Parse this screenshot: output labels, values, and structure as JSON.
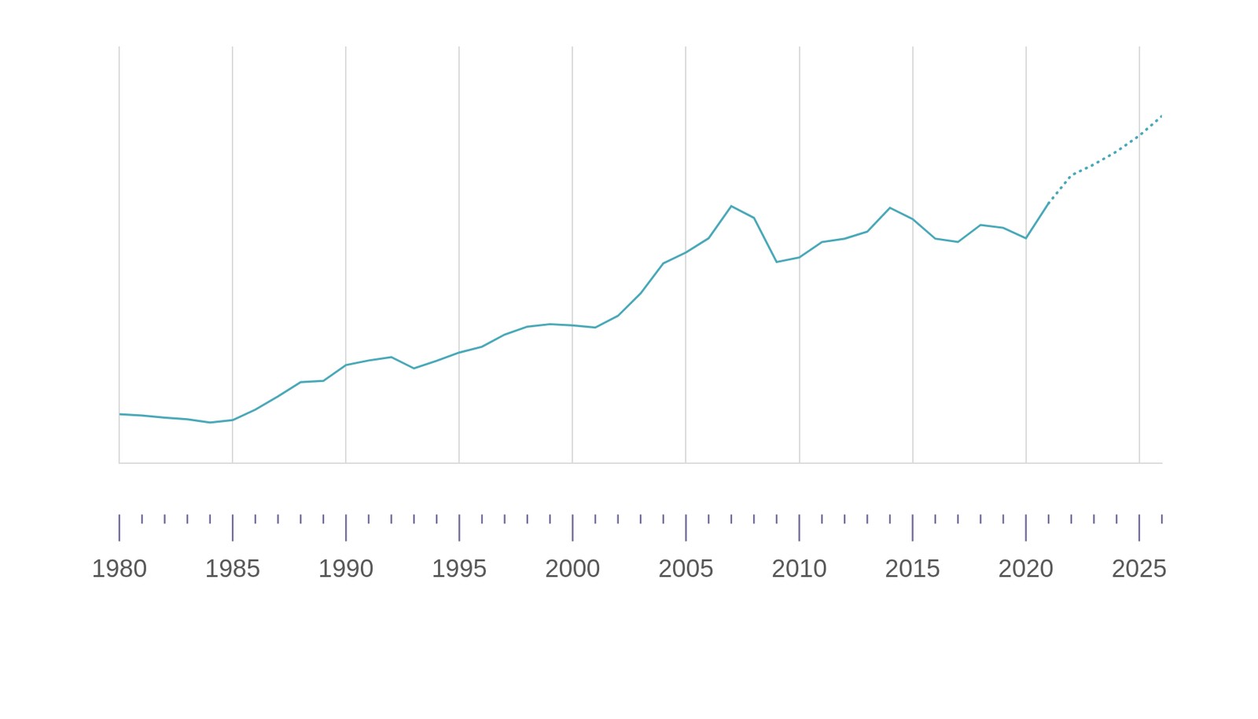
{
  "chart_data": {
    "type": "line",
    "x": [
      1980,
      1981,
      1982,
      1983,
      1984,
      1985,
      1986,
      1987,
      1988,
      1989,
      1990,
      1991,
      1992,
      1993,
      1994,
      1995,
      1996,
      1997,
      1998,
      1999,
      2000,
      2001,
      2002,
      2003,
      2004,
      2005,
      2006,
      2007,
      2008,
      2009,
      2010,
      2011,
      2012,
      2013,
      2014,
      2015,
      2016,
      2017,
      2018,
      2019,
      2020,
      2021,
      2022,
      2023,
      2024,
      2025,
      2026
    ],
    "series": [
      {
        "color": "#4aa9b8",
        "line_style": "solid",
        "values": [
          11.8,
          11.5,
          11.0,
          10.6,
          9.8,
          10.4,
          12.9,
          16.1,
          19.5,
          19.8,
          23.6,
          24.7,
          25.5,
          22.8,
          24.6,
          26.6,
          28.0,
          30.9,
          32.8,
          33.4,
          33.1,
          32.6,
          35.4,
          40.8,
          48.0,
          50.6,
          54.0,
          61.7,
          58.9,
          48.3,
          49.4,
          53.1,
          53.9,
          55.6,
          61.3,
          58.6,
          53.9,
          53.1,
          57.2,
          56.5,
          54.0,
          62.4,
          null,
          null,
          null,
          null,
          null
        ]
      },
      {
        "color": "#4aa9b8",
        "line_style": "dotted",
        "values": [
          null,
          null,
          null,
          null,
          null,
          null,
          null,
          null,
          null,
          null,
          null,
          null,
          null,
          null,
          null,
          null,
          null,
          null,
          null,
          null,
          null,
          null,
          null,
          null,
          null,
          null,
          null,
          null,
          null,
          null,
          null,
          null,
          null,
          null,
          null,
          null,
          null,
          null,
          null,
          null,
          null,
          62.4,
          69.1,
          71.7,
          74.8,
          78.6,
          83.3
        ]
      }
    ],
    "xlim": [
      1980,
      2026
    ],
    "xticks": [
      1980,
      1985,
      1990,
      1995,
      2000,
      2005,
      2010,
      2015,
      2020,
      2025
    ],
    "ylim": [
      0,
      100
    ],
    "grid": true,
    "tick_labels": "x"
  }
}
